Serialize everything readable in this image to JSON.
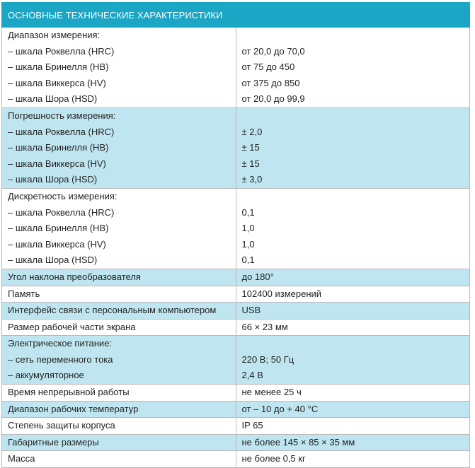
{
  "header": {
    "title": "ОСНОВНЫЕ ТЕХНИЧЕСКИЕ ХАРАКТЕРИСТИКИ"
  },
  "groups": [
    {
      "shade": "white",
      "title": "Диапазон измерения:",
      "rows": [
        {
          "label": "– шкала Роквелла (HRC)",
          "value": "от 20,0 до 70,0"
        },
        {
          "label": "– шкала Бринелля (HB)",
          "value": "от 75 до 450"
        },
        {
          "label": "– шкала Виккерса (HV)",
          "value": "от 375 до 850"
        },
        {
          "label": "– шкала Шора (HSD)",
          "value": "от 20,0 до 99,9"
        }
      ]
    },
    {
      "shade": "blue",
      "title": "Погрешность измерения:",
      "rows": [
        {
          "label": "– шкала Роквелла (HRC)",
          "value": "± 2,0"
        },
        {
          "label": "– шкала Бринелля (HB)",
          "value": "± 15"
        },
        {
          "label": "– шкала Виккерса (HV)",
          "value": "± 15"
        },
        {
          "label": "– шкала Шора (HSD)",
          "value": "± 3,0"
        }
      ]
    },
    {
      "shade": "white",
      "title": "Дискретность измерения:",
      "rows": [
        {
          "label": "– шкала Роквелла (HRC)",
          "value": "0,1"
        },
        {
          "label": "– шкала Бринелля (HB)",
          "value": "1,0"
        },
        {
          "label": "– шкала Виккерса (HV)",
          "value": "1,0"
        },
        {
          "label": "– шкала Шора (HSD)",
          "value": "0,1"
        }
      ]
    },
    {
      "shade": "blue",
      "title": "Угол наклона преобразователя",
      "value": "до 180°"
    },
    {
      "shade": "white",
      "title": "Память",
      "value": "102400 измерений"
    },
    {
      "shade": "blue",
      "title": "Интерфейс связи с персональным компьютером",
      "value": "USB"
    },
    {
      "shade": "white",
      "title": "Размер рабочей части экрана",
      "value": "66 × 23 мм"
    },
    {
      "shade": "blue",
      "title": "Электрическое питание:",
      "rows": [
        {
          "label": "– сеть переменного тока",
          "value": "220 В; 50 Гц"
        },
        {
          "label": "– аккумуляторное",
          "value": "2,4 В"
        }
      ]
    },
    {
      "shade": "white",
      "title": "Время непрерывной работы",
      "value": "не менее 25 ч"
    },
    {
      "shade": "blue",
      "title": "Диапазон рабочих температур",
      "value": "от – 10 до + 40 °С"
    },
    {
      "shade": "white",
      "title": "Степень защиты корпуса",
      "value": "IP 65"
    },
    {
      "shade": "blue",
      "title": "Габаритные размеры",
      "value": "не более 145 × 85 × 35 мм"
    },
    {
      "shade": "white",
      "title": "Масса",
      "value": "не более 0,5 кг"
    }
  ],
  "colors": {
    "header_bg": "#1aa6c4",
    "row_blue": "#bfe6f0",
    "row_white": "#ffffff",
    "border": "#b9b9b9"
  }
}
